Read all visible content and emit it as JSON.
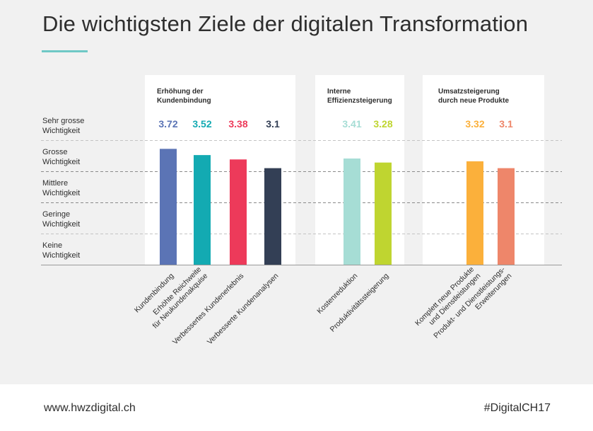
{
  "title": "Die wichtigsten Ziele der digitalen Transformation",
  "footer": {
    "url": "www.hwzdigital.ch",
    "hashtag": "#DigitalCH17"
  },
  "chart_data": {
    "type": "bar",
    "title": "Die wichtigsten Ziele der digitalen Transformation",
    "y_scale_labels": [
      "Keine Wichtigkeit",
      "Geringe Wichtigkeit",
      "Mittlere Wichtigkeit",
      "Grosse Wichtigkeit",
      "Sehr grosse Wichtigkeit"
    ],
    "ylim": [
      0,
      4
    ],
    "groups": [
      {
        "label_lines": [
          "Erhöhung der",
          "Kundenbindung"
        ],
        "bars": [
          {
            "category_lines": [
              "Kundenbindung"
            ],
            "value": 3.72,
            "label": "3.72",
            "color": "#5b74b5"
          },
          {
            "category_lines": [
              "Erhöhte Reichweite",
              "für Neukundenakquise"
            ],
            "value": 3.52,
            "label": "3.52",
            "color": "#13aab2"
          },
          {
            "category_lines": [
              "Verbessertes Kundenerlebnis"
            ],
            "value": 3.38,
            "label": "3.38",
            "color": "#ed3a5a"
          },
          {
            "category_lines": [
              "Verbesserte Kundenanalysen"
            ],
            "value": 3.1,
            "label": "3.1",
            "color": "#333f55"
          }
        ]
      },
      {
        "label_lines": [
          "Interne",
          "Effizienzsteigerung"
        ],
        "bars": [
          {
            "category_lines": [
              "Kostenreduktion"
            ],
            "value": 3.41,
            "label": "3.41",
            "color": "#a6ddd5"
          },
          {
            "category_lines": [
              "Produktivitätssteigerung"
            ],
            "value": 3.28,
            "label": "3.28",
            "color": "#bfd530"
          }
        ]
      },
      {
        "label_lines": [
          "Umsatzsteigerung",
          "durch neue Produkte"
        ],
        "bars": [
          {
            "category_lines": [
              "Komplett neue Produkte",
              "und Dienstleistungen"
            ],
            "value": 3.32,
            "label": "3.32",
            "color": "#fbb03b"
          },
          {
            "category_lines": [
              "Produkt- und Dienstleistungs-",
              "Erweiterungen"
            ],
            "value": 3.1,
            "label": "3.1",
            "color": "#ee866a"
          }
        ]
      }
    ],
    "grid": true,
    "gridline_style": "dashed"
  }
}
